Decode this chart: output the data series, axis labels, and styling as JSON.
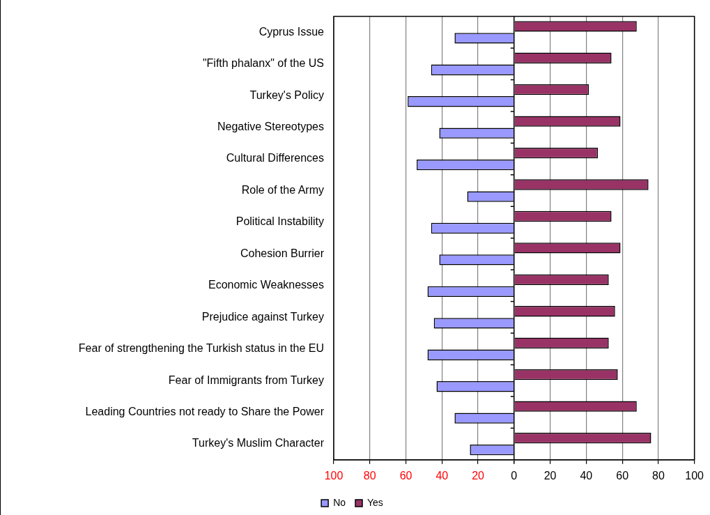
{
  "chart_data": {
    "type": "bar",
    "orientation": "horizontal",
    "categories": [
      "Cyprus Issue",
      "\"Fifth phalanx\" of the US",
      "Turkey's Policy",
      "Negative Stereotypes",
      "Cultural Differences",
      "Role of the Army",
      "Political Instability",
      "Cohesion Burrier",
      "Economic Weaknesses",
      "Prejudice against Turkey",
      "Fear of strengthening the Turkish status in the EU",
      "Fear of Immigrants from Turkey",
      "Leading Countries not ready to Share the Power",
      "Turkey's Muslim Character"
    ],
    "series": [
      {
        "name": "No",
        "color": "#9999ff",
        "values": [
          -33,
          -46,
          -59,
          -41.5,
          -54,
          -26,
          -46,
          -41.5,
          -48,
          -44.5,
          -48,
          -43,
          -33,
          -24.5
        ]
      },
      {
        "name": "Yes",
        "color": "#993366",
        "values": [
          68,
          54,
          41.5,
          59,
          46.5,
          74.5,
          54,
          59,
          52.5,
          56,
          52.5,
          57.5,
          68,
          76
        ]
      }
    ],
    "xlim": [
      -100,
      100
    ],
    "xticks": [
      {
        "value": -100,
        "label": "100"
      },
      {
        "value": -80,
        "label": "80"
      },
      {
        "value": -60,
        "label": "60"
      },
      {
        "value": -40,
        "label": "40"
      },
      {
        "value": -20,
        "label": "20"
      },
      0,
      20,
      40,
      60,
      80,
      100
    ],
    "grid": "x",
    "legend": "bottom"
  }
}
